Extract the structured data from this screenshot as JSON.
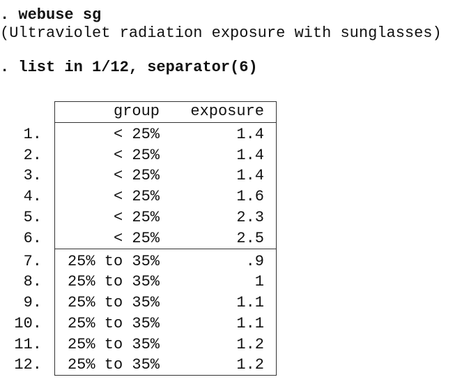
{
  "console": {
    "command_1": ". webuse sg",
    "output_1": "(Ultraviolet radiation exposure with sunglasses)",
    "command_2": ". list in 1/12, separator(6)"
  },
  "table": {
    "headers": [
      "group",
      "exposure"
    ],
    "rows": [
      [
        "1.",
        "< 25%",
        "1.4"
      ],
      [
        "2.",
        "< 25%",
        "1.4"
      ],
      [
        "3.",
        "< 25%",
        "1.4"
      ],
      [
        "4.",
        "< 25%",
        "1.6"
      ],
      [
        "5.",
        "< 25%",
        "2.3"
      ],
      [
        "6.",
        "< 25%",
        "2.5"
      ],
      [
        "7.",
        "25% to 35%",
        ".9"
      ],
      [
        "8.",
        "25% to 35%",
        "1"
      ],
      [
        "9.",
        "25% to 35%",
        "1.1"
      ],
      [
        "10.",
        "25% to 35%",
        "1.1"
      ],
      [
        "11.",
        "25% to 35%",
        "1.2"
      ],
      [
        "12.",
        "25% to 35%",
        "1.2"
      ]
    ]
  }
}
